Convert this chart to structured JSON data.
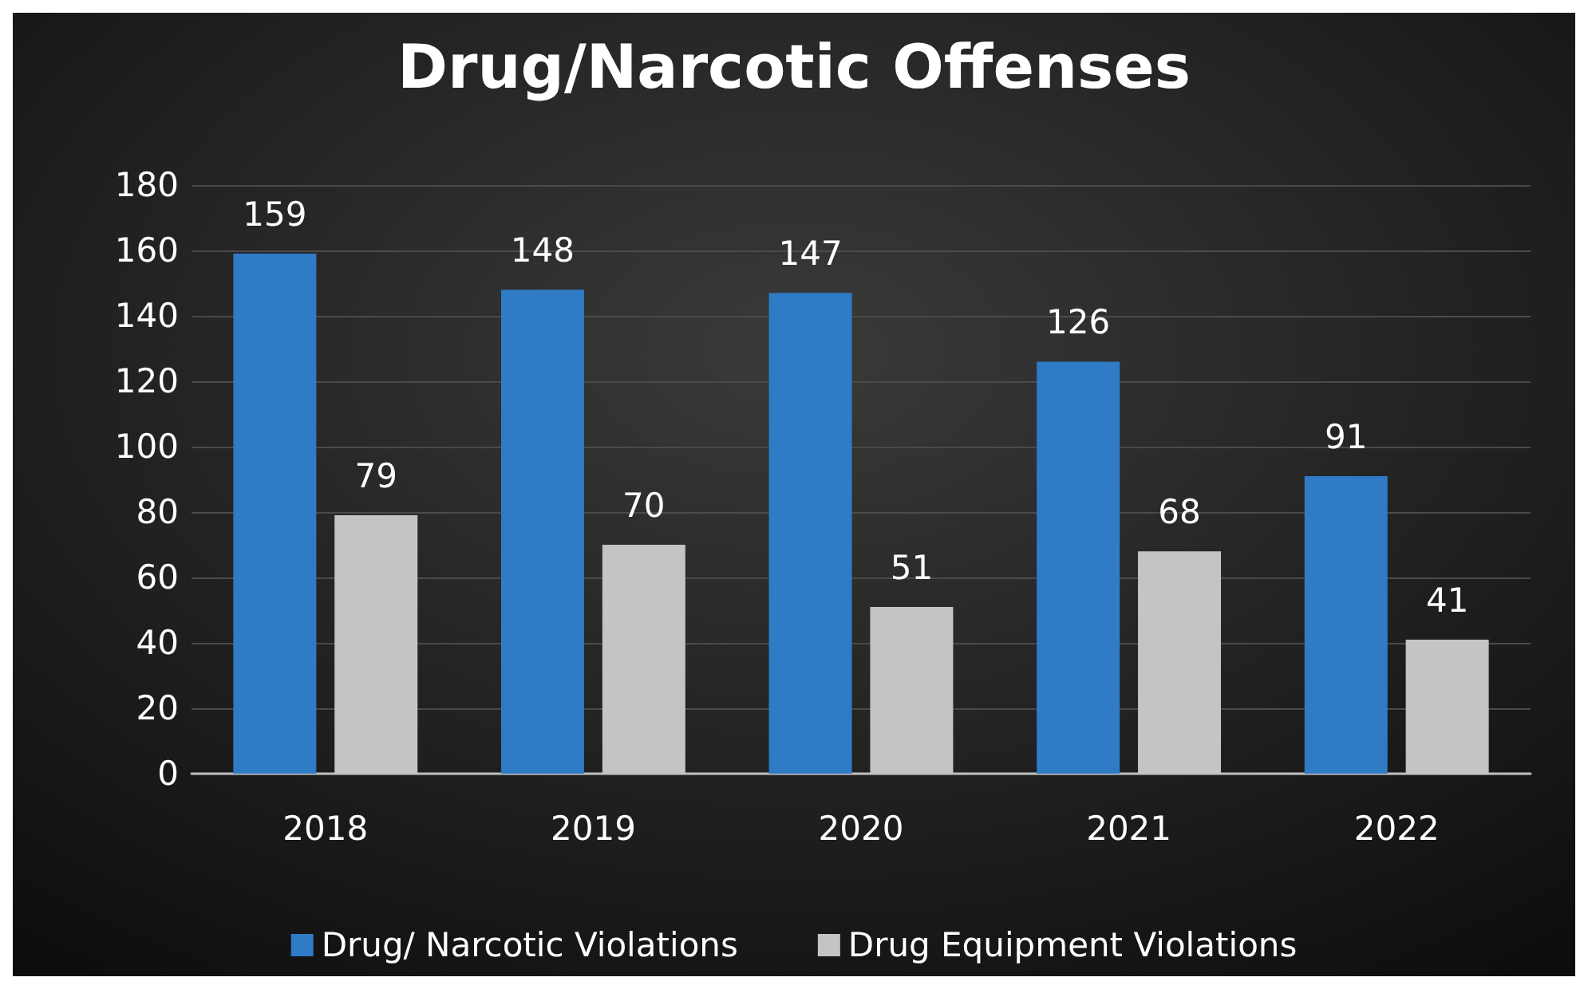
{
  "chart_data": {
    "type": "bar",
    "title": "Drug/Narcotic Offenses",
    "categories": [
      "2018",
      "2019",
      "2020",
      "2021",
      "2022"
    ],
    "series": [
      {
        "name": "Drug/ Narcotic Violations",
        "color": "#2f7bc6",
        "values": [
          159,
          148,
          147,
          126,
          91
        ]
      },
      {
        "name": "Drug Equipment Violations",
        "color": "#c4c4c4",
        "values": [
          79,
          70,
          51,
          68,
          41
        ]
      }
    ],
    "ylim": [
      0,
      180
    ],
    "yticks": [
      0,
      20,
      40,
      60,
      80,
      100,
      120,
      140,
      160,
      180
    ],
    "grid": "y",
    "legend": "bottom",
    "data_labels": true
  }
}
